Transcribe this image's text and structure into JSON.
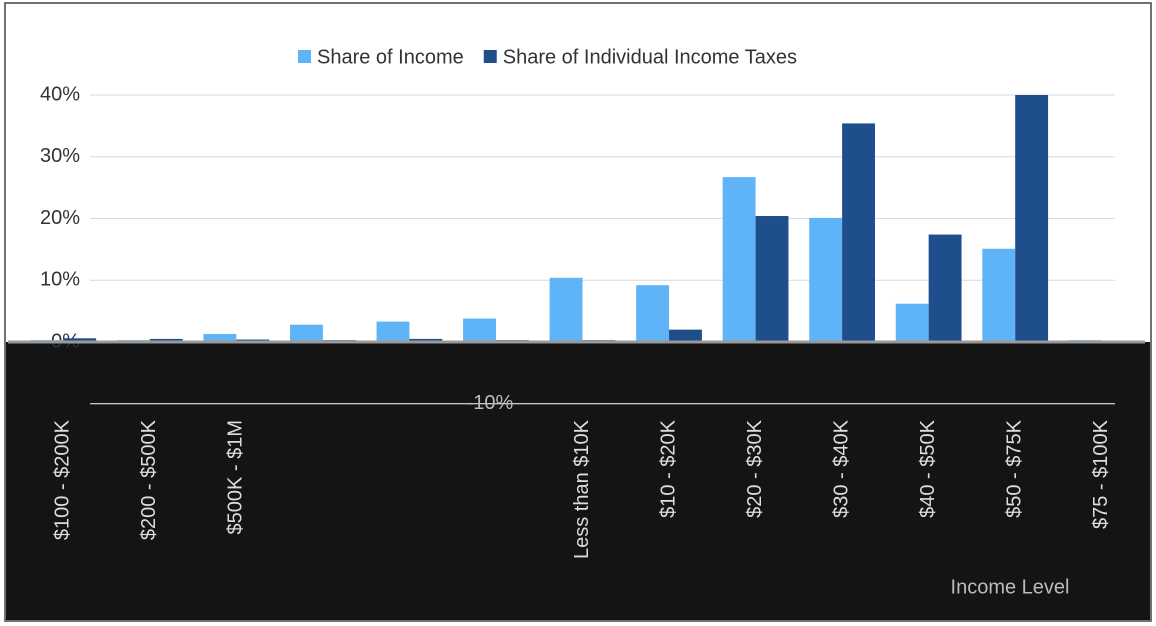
{
  "chart_data": {
    "type": "bar",
    "x_label": "Income Level",
    "categories": [
      "$100 - $200K",
      "$200 - $500K",
      "$500K - $1M",
      null,
      null,
      null,
      "Less than $10K",
      "$10 - $20K",
      "$20 - $30K",
      "$30 - $40K",
      "$40 - $50K",
      "$50 - $75K",
      "$75 - $100K"
    ],
    "series": [
      {
        "name": "Share of Income",
        "color": "#5eb4f7",
        "values": [
          0.3,
          0.3,
          1.3,
          2.8,
          3.3,
          3.8,
          10.4,
          9.2,
          26.7,
          20.1,
          6.2,
          15.1,
          0.3
        ]
      },
      {
        "name": "Share of Individual Income Taxes",
        "color": "#1f4e8c",
        "values": [
          0.6,
          0.5,
          0.4,
          0.3,
          0.5,
          0.3,
          0.3,
          2.0,
          20.4,
          35.4,
          17.4,
          40.0,
          0.2
        ]
      }
    ],
    "ylim": [
      -10,
      40
    ],
    "yticks": [
      {
        "value": -10,
        "label": "-10%"
      },
      {
        "value": 0,
        "label": "0%"
      },
      {
        "value": 10,
        "label": "10%"
      },
      {
        "value": 20,
        "label": "20%"
      },
      {
        "value": 30,
        "label": "30%"
      },
      {
        "value": 40,
        "label": "40%"
      }
    ],
    "grid": true,
    "legend": "top"
  }
}
